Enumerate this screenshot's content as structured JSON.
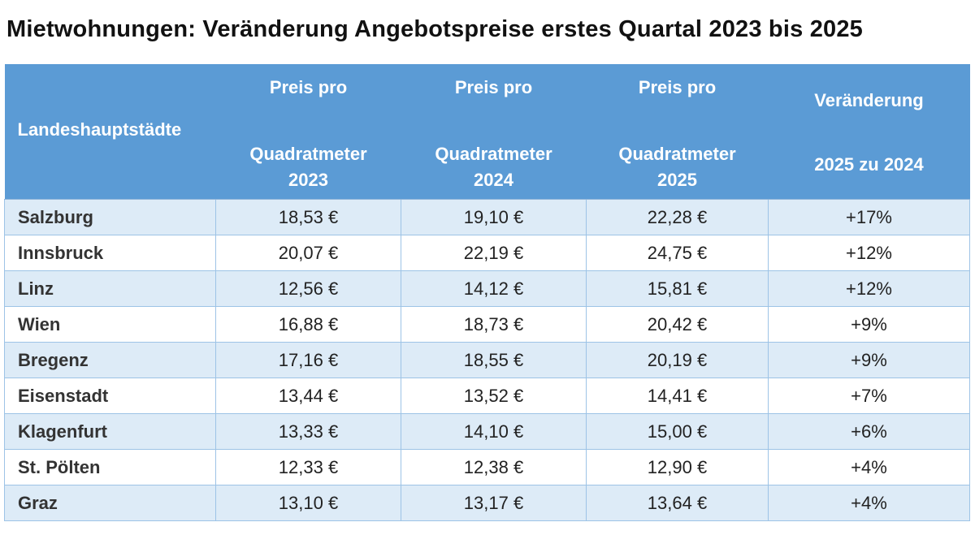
{
  "title": "Mietwohnungen: Veränderung Angebotspreise erstes Quartal 2023 bis 2025",
  "header": {
    "city": "Landeshauptstädte",
    "price_2023": [
      "Preis pro",
      "Quadratmeter",
      "2023"
    ],
    "price_2024": [
      "Preis pro",
      "Quadratmeter",
      "2024"
    ],
    "price_2025": [
      "Preis pro",
      "Quadratmeter",
      "2025"
    ],
    "change": [
      "Veränderung",
      "2025 zu 2024"
    ]
  },
  "colors": {
    "header_bg": "#5b9bd5",
    "band_bg": "#ddebf7",
    "border": "#9dc3e6"
  },
  "chart_data": {
    "type": "table",
    "title": "Mietwohnungen: Veränderung Angebotspreise erstes Quartal 2023 bis 2025",
    "columns": [
      "Landeshauptstädte",
      "Preis pro Quadratmeter 2023",
      "Preis pro Quadratmeter 2024",
      "Preis pro Quadratmeter 2025",
      "Veränderung 2025 zu 2024"
    ],
    "rows": [
      {
        "city": "Salzburg",
        "p2023": "18,53 €",
        "p2024": "19,10 €",
        "p2025": "22,28 €",
        "change": "+17%"
      },
      {
        "city": "Innsbruck",
        "p2023": "20,07 €",
        "p2024": "22,19 €",
        "p2025": "24,75 €",
        "change": "+12%"
      },
      {
        "city": "Linz",
        "p2023": "12,56 €",
        "p2024": "14,12 €",
        "p2025": "15,81 €",
        "change": "+12%"
      },
      {
        "city": "Wien",
        "p2023": "16,88 €",
        "p2024": "18,73 €",
        "p2025": "20,42 €",
        "change": "+9%"
      },
      {
        "city": "Bregenz",
        "p2023": "17,16 €",
        "p2024": "18,55 €",
        "p2025": "20,19 €",
        "change": "+9%"
      },
      {
        "city": "Eisenstadt",
        "p2023": "13,44 €",
        "p2024": "13,52 €",
        "p2025": "14,41 €",
        "change": "+7%"
      },
      {
        "city": "Klagenfurt",
        "p2023": "13,33 €",
        "p2024": "14,10 €",
        "p2025": "15,00 €",
        "change": "+6%"
      },
      {
        "city": "St. Pölten",
        "p2023": "12,33 €",
        "p2024": "12,38 €",
        "p2025": "12,90 €",
        "change": "+4%"
      },
      {
        "city": "Graz",
        "p2023": "13,10 €",
        "p2024": "13,17 €",
        "p2025": "13,64 €",
        "change": "+4%"
      }
    ]
  }
}
